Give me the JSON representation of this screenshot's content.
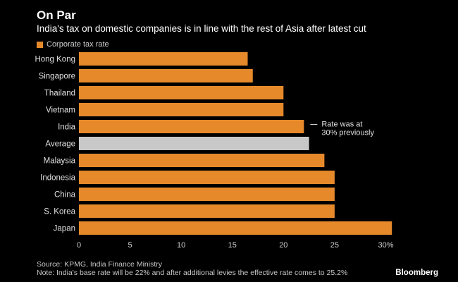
{
  "header": {
    "title": "On Par",
    "subtitle": "India's tax on domestic companies is in line with the rest of Asia after latest cut"
  },
  "legend": {
    "label": "Corporate tax rate",
    "color": "#E5892B"
  },
  "colors": {
    "bar": "#E5892B",
    "highlight": "#C8C8C8",
    "background": "#000000"
  },
  "chart_data": {
    "type": "bar",
    "orientation": "horizontal",
    "categories": [
      "Hong Kong",
      "Singapore",
      "Thailand",
      "Vietnam",
      "India",
      "Average",
      "Malaysia",
      "Indonesia",
      "China",
      "S. Korea",
      "Japan"
    ],
    "values": [
      16.5,
      17,
      20,
      20,
      22,
      22.5,
      24,
      25,
      25,
      25,
      30.6
    ],
    "highlighted_category": "Average",
    "series": [
      {
        "name": "Corporate tax rate",
        "values": [
          16.5,
          17,
          20,
          20,
          22,
          22.5,
          24,
          25,
          25,
          25,
          30.6
        ]
      }
    ],
    "xlim": [
      0,
      31
    ],
    "xticks": [
      0,
      5,
      10,
      15,
      20,
      25,
      30
    ],
    "xtick_labels": [
      "0",
      "5",
      "10",
      "15",
      "20",
      "25",
      "30%"
    ],
    "annotation": {
      "category": "India",
      "lines": [
        "Rate was at",
        "30% previously"
      ]
    },
    "grid": false,
    "legend_position": "top-left"
  },
  "footer": {
    "source": "Source: KPMG, India Finance Ministry",
    "note": "Note: India's base rate will be 22% and after additional levies the effective rate comes to 25.2%",
    "brand": "Bloomberg"
  }
}
